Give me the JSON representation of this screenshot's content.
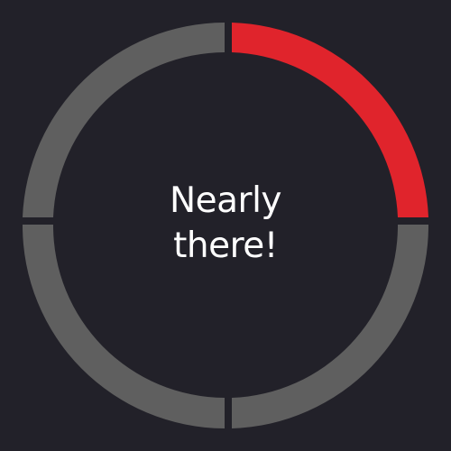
{
  "progress": {
    "segments_total": 4,
    "segments_completed": 1,
    "completed_color": "#e0242c",
    "remaining_color": "#5f5f5f",
    "background_color": "#222129"
  },
  "message": {
    "line1": "Nearly",
    "line2": "there!"
  }
}
